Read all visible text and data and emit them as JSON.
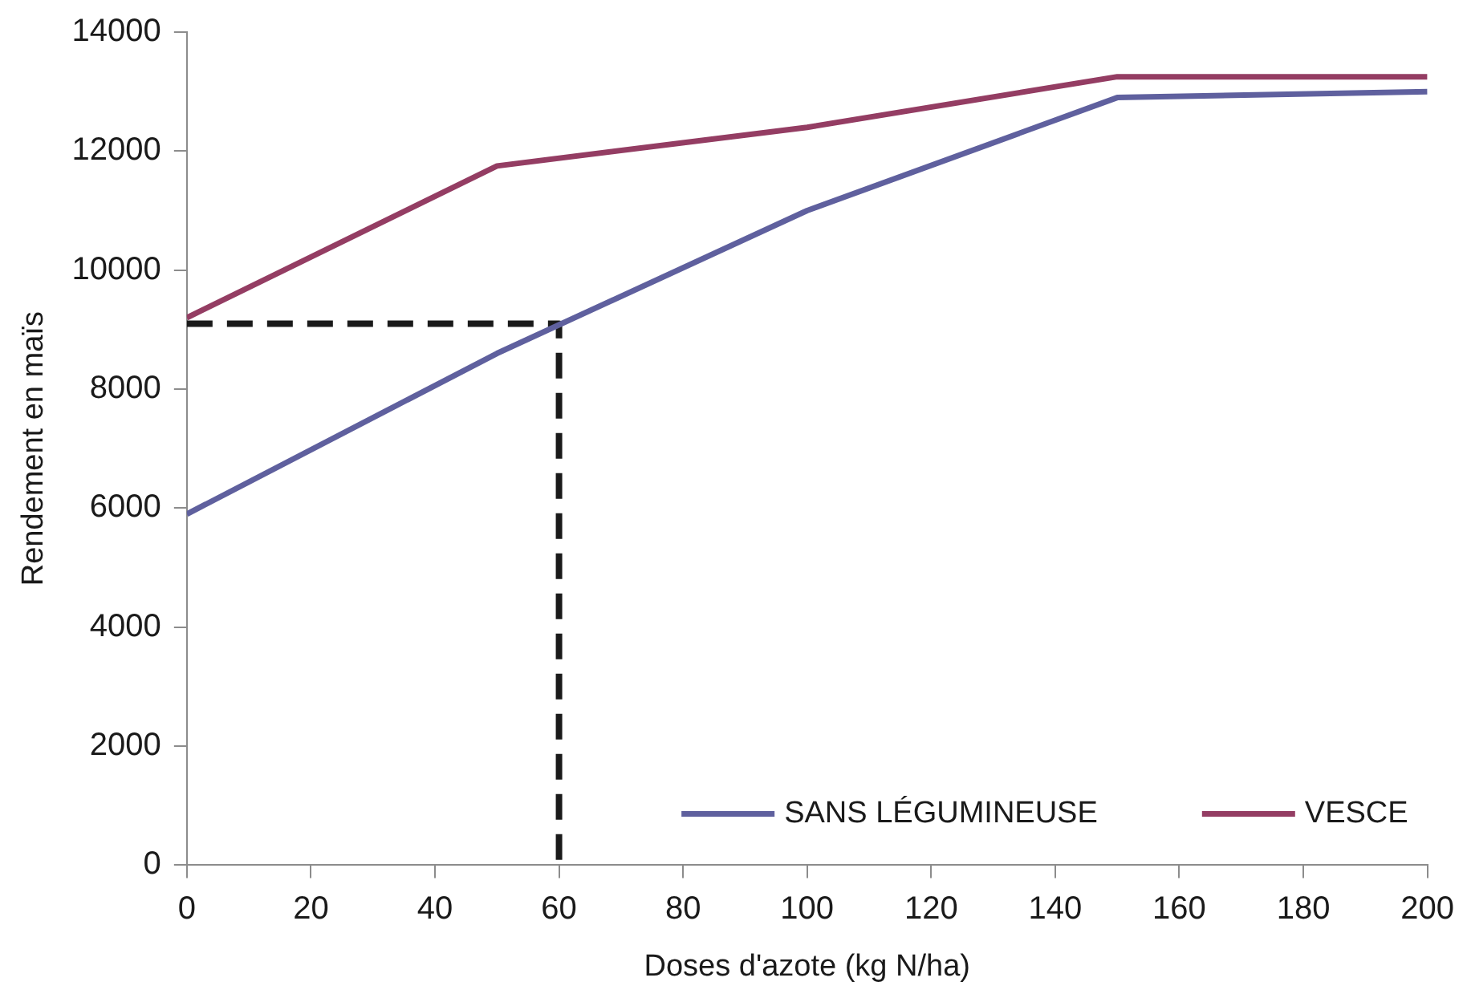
{
  "chart_data": {
    "type": "line",
    "xlabel": "Doses d'azote (kg N/ha)",
    "ylabel": "Rendement en maïs",
    "xlim": [
      0,
      200
    ],
    "xticks": [
      0,
      20,
      40,
      60,
      80,
      100,
      120,
      140,
      160,
      180,
      200
    ],
    "ylim": [
      0,
      14000
    ],
    "yticks": [
      0,
      2000,
      4000,
      6000,
      8000,
      10000,
      12000,
      14000
    ],
    "grid": false,
    "legend": "bottom right",
    "marker": "none",
    "series": [
      {
        "name": "SANS LÉGUMINEUSE",
        "color": "#5f609e",
        "x": [
          0,
          50,
          100,
          150,
          200
        ],
        "values": [
          5900,
          8600,
          11000,
          12900,
          13000
        ]
      },
      {
        "name": "VESCE",
        "color": "#943d63",
        "x": [
          0,
          50,
          100,
          150,
          200
        ],
        "values": [
          9200,
          11750,
          12400,
          13250,
          13250
        ]
      },
      {
        "color": "#1a1a1a",
        "line_style": "dashed",
        "x": [
          0,
          60,
          60
        ],
        "values": [
          9100,
          9100,
          0
        ]
      }
    ]
  }
}
